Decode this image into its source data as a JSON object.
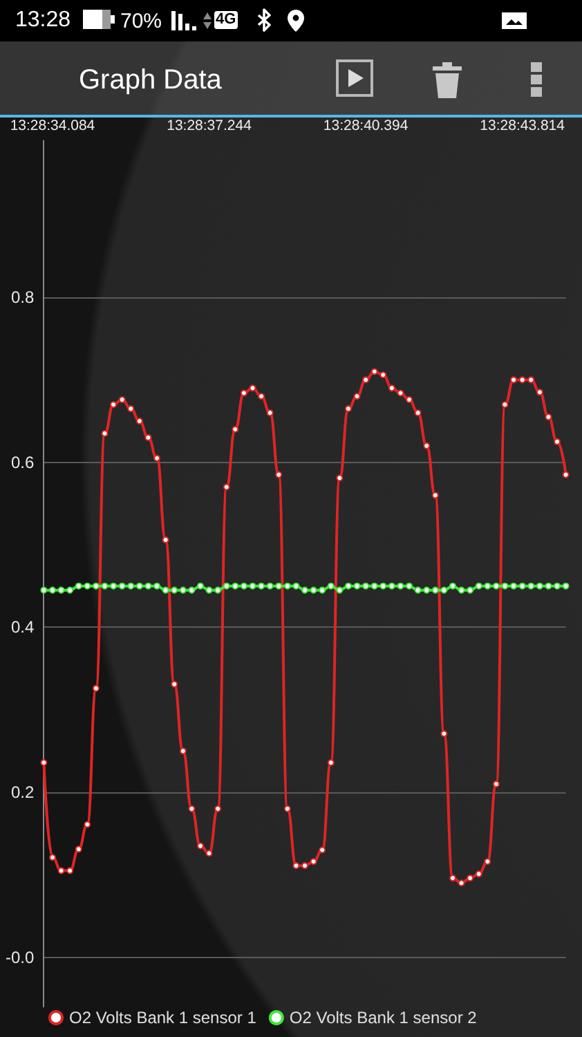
{
  "chart_data": {
    "type": "line",
    "title": "Graph Data",
    "annotations": [
      "13:28",
      "70%",
      "4G"
    ],
    "categories": [
      null,
      "13:28:34.084",
      null,
      null,
      null,
      null,
      null,
      null,
      null,
      null,
      null,
      null,
      null,
      null,
      null,
      null,
      null,
      null,
      null,
      "13:28:37.244",
      null,
      null,
      null,
      null,
      null,
      null,
      null,
      null,
      null,
      null,
      null,
      null,
      null,
      null,
      null,
      null,
      null,
      "13:28:40.394",
      null,
      null,
      null,
      null,
      null,
      null,
      null,
      null,
      null,
      null,
      null,
      null,
      null,
      null,
      null,
      null,
      null,
      "13:28:43.814",
      null,
      null,
      null,
      null,
      null
    ],
    "series": [
      {
        "name": "O2 Volts Bank 1 sensor 1",
        "color": "#e02424",
        "values": [
          0.236,
          0.121,
          0.105,
          0.105,
          0.131,
          0.161,
          0.326,
          0.635,
          0.67,
          0.676,
          0.665,
          0.65,
          0.63,
          0.605,
          0.506,
          0.331,
          0.25,
          0.18,
          0.135,
          0.126,
          0.18,
          0.57,
          0.64,
          0.684,
          0.69,
          0.68,
          0.66,
          0.585,
          0.18,
          0.111,
          0.111,
          0.116,
          0.13,
          0.236,
          0.581,
          0.665,
          0.68,
          0.7,
          0.71,
          0.706,
          0.69,
          0.684,
          0.676,
          0.66,
          0.62,
          0.56,
          0.271,
          0.096,
          0.09,
          0.096,
          0.101,
          0.116,
          0.21,
          0.67,
          0.7,
          0.7,
          0.7,
          0.685,
          0.655,
          0.625,
          0.585
        ]
      },
      {
        "name": "O2 Volts Bank 1 sensor 2",
        "color": "#3ee83a",
        "values": [
          0.445,
          0.445,
          0.445,
          0.445,
          0.45,
          0.45,
          0.45,
          0.45,
          0.45,
          0.45,
          0.45,
          0.45,
          0.45,
          0.45,
          0.445,
          0.445,
          0.445,
          0.445,
          0.45,
          0.445,
          0.445,
          0.45,
          0.45,
          0.45,
          0.45,
          0.45,
          0.45,
          0.45,
          0.45,
          0.45,
          0.445,
          0.445,
          0.445,
          0.45,
          0.445,
          0.45,
          0.45,
          0.45,
          0.45,
          0.45,
          0.45,
          0.45,
          0.45,
          0.445,
          0.445,
          0.445,
          0.445,
          0.45,
          0.445,
          0.445,
          0.45,
          0.45,
          0.45,
          0.45,
          0.45,
          0.45,
          0.45,
          0.45,
          0.45,
          0.45,
          0.45
        ]
      }
    ],
    "ylim": [
      -0.06,
      0.99
    ],
    "yticks": [
      {
        "value": 0,
        "label": "-0.0"
      },
      0.2,
      0.4,
      0.6,
      0.8
    ],
    "grid": "y",
    "legend": "bottom",
    "marker": "circle",
    "line_style": "solid"
  }
}
